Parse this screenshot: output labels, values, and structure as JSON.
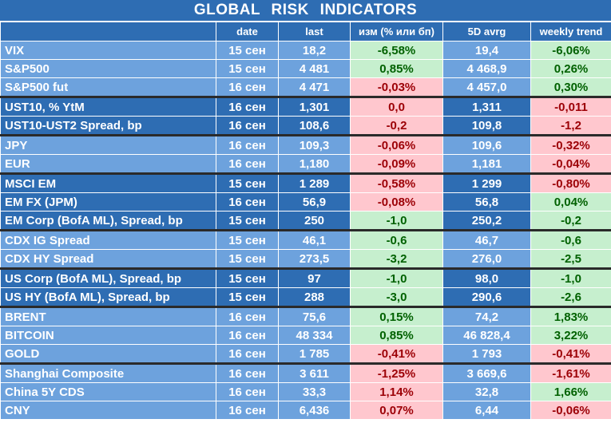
{
  "title": "GLOBAL RISK INDICATORS",
  "columns": [
    "",
    "date",
    "last",
    "изм (% или бп)",
    "5D avrg",
    "weekly trend"
  ],
  "colors": {
    "header": "#2e6db3",
    "light": "#6da2dd",
    "pos_bg": "#c6efce",
    "pos_fg": "#006100",
    "neg_bg": "#ffc7ce",
    "neg_fg": "#9c0006"
  },
  "rows": [
    {
      "name": "VIX",
      "date": "15 сен",
      "last": "18,2",
      "chg": "-6,58%",
      "chg_sign": "pos",
      "avg": "19,4",
      "trend": "-6,06%",
      "trend_sign": "pos",
      "group": 0,
      "group_start": false
    },
    {
      "name": "S&P500",
      "date": "15 сен",
      "last": "4 481",
      "chg": "0,85%",
      "chg_sign": "pos",
      "avg": "4 468,9",
      "trend": "0,26%",
      "trend_sign": "pos",
      "group": 0,
      "group_start": false
    },
    {
      "name": "S&P500 fut",
      "date": "16 сен",
      "last": "4 471",
      "chg": "-0,03%",
      "chg_sign": "neg",
      "avg": "4 457,0",
      "trend": "0,30%",
      "trend_sign": "pos",
      "group": 0,
      "group_start": false
    },
    {
      "name": "UST10, % YtM",
      "date": "16 сен",
      "last": "1,301",
      "chg": "0,0",
      "chg_sign": "neg",
      "avg": "1,311",
      "trend": "-0,011",
      "trend_sign": "neg",
      "group": 1,
      "group_start": true
    },
    {
      "name": "UST10-UST2 Spread, bp",
      "date": "16 сен",
      "last": "108,6",
      "chg": "-0,2",
      "chg_sign": "neg",
      "avg": "109,8",
      "trend": "-1,2",
      "trend_sign": "neg",
      "group": 1,
      "group_start": false
    },
    {
      "name": "JPY",
      "date": "16 сен",
      "last": "109,3",
      "chg": "-0,06%",
      "chg_sign": "neg",
      "avg": "109,6",
      "trend": "-0,32%",
      "trend_sign": "neg",
      "group": 0,
      "group_start": true
    },
    {
      "name": "EUR",
      "date": "16 сен",
      "last": "1,180",
      "chg": "-0,09%",
      "chg_sign": "neg",
      "avg": "1,181",
      "trend": "-0,04%",
      "trend_sign": "neg",
      "group": 0,
      "group_start": false
    },
    {
      "name": "MSCI EM",
      "date": "15 сен",
      "last": "1 289",
      "chg": "-0,58%",
      "chg_sign": "neg",
      "avg": "1 299",
      "trend": "-0,80%",
      "trend_sign": "neg",
      "group": 1,
      "group_start": true
    },
    {
      "name": "EM FX (JPM)",
      "date": "16 сен",
      "last": "56,9",
      "chg": "-0,08%",
      "chg_sign": "neg",
      "avg": "56,8",
      "trend": "0,04%",
      "trend_sign": "pos",
      "group": 1,
      "group_start": false
    },
    {
      "name": "EM Corp (BofA ML), Spread, bp",
      "date": "15 сен",
      "last": "250",
      "chg": "-1,0",
      "chg_sign": "pos",
      "avg": "250,2",
      "trend": "-0,2",
      "trend_sign": "pos",
      "group": 1,
      "group_start": false
    },
    {
      "name": "CDX IG Spread",
      "date": "15 сен",
      "last": "46,1",
      "chg": "-0,6",
      "chg_sign": "pos",
      "avg": "46,7",
      "trend": "-0,6",
      "trend_sign": "pos",
      "group": 0,
      "group_start": true
    },
    {
      "name": "CDX HY Spread",
      "date": "15 сен",
      "last": "273,5",
      "chg": "-3,2",
      "chg_sign": "pos",
      "avg": "276,0",
      "trend": "-2,5",
      "trend_sign": "pos",
      "group": 0,
      "group_start": false
    },
    {
      "name": "US Corp (BofA ML), Spread, bp",
      "date": "15 сен",
      "last": "97",
      "chg": "-1,0",
      "chg_sign": "pos",
      "avg": "98,0",
      "trend": "-1,0",
      "trend_sign": "pos",
      "group": 1,
      "group_start": true
    },
    {
      "name": "US HY (BofA ML), Spread, bp",
      "date": "15 сен",
      "last": "288",
      "chg": "-3,0",
      "chg_sign": "pos",
      "avg": "290,6",
      "trend": "-2,6",
      "trend_sign": "pos",
      "group": 1,
      "group_start": false
    },
    {
      "name": "BRENT",
      "date": "16 сен",
      "last": "75,6",
      "chg": "0,15%",
      "chg_sign": "pos",
      "avg": "74,2",
      "trend": "1,83%",
      "trend_sign": "pos",
      "group": 0,
      "group_start": true
    },
    {
      "name": "BITCOIN",
      "date": "16 сен",
      "last": "48 334",
      "chg": "0,85%",
      "chg_sign": "pos",
      "avg": "46 828,4",
      "trend": "3,22%",
      "trend_sign": "pos",
      "group": 0,
      "group_start": false
    },
    {
      "name": "GOLD",
      "date": "16 сен",
      "last": "1 785",
      "chg": "-0,41%",
      "chg_sign": "neg",
      "avg": "1 793",
      "trend": "-0,41%",
      "trend_sign": "neg",
      "group": 0,
      "group_start": false
    },
    {
      "name": "Shanghai Composite",
      "date": "16 сен",
      "last": "3 611",
      "chg": "-1,25%",
      "chg_sign": "neg",
      "avg": "3 669,6",
      "trend": "-1,61%",
      "trend_sign": "neg",
      "group": 0,
      "group_start": true
    },
    {
      "name": "China 5Y CDS",
      "date": "16 сен",
      "last": "33,3",
      "chg": "1,14%",
      "chg_sign": "neg",
      "avg": "32,8",
      "trend": "1,66%",
      "trend_sign": "pos",
      "group": 0,
      "group_start": false
    },
    {
      "name": "CNY",
      "date": "16 сен",
      "last": "6,436",
      "chg": "0,07%",
      "chg_sign": "neg",
      "avg": "6,44",
      "trend": "-0,06%",
      "trend_sign": "neg",
      "group": 0,
      "group_start": false
    }
  ]
}
